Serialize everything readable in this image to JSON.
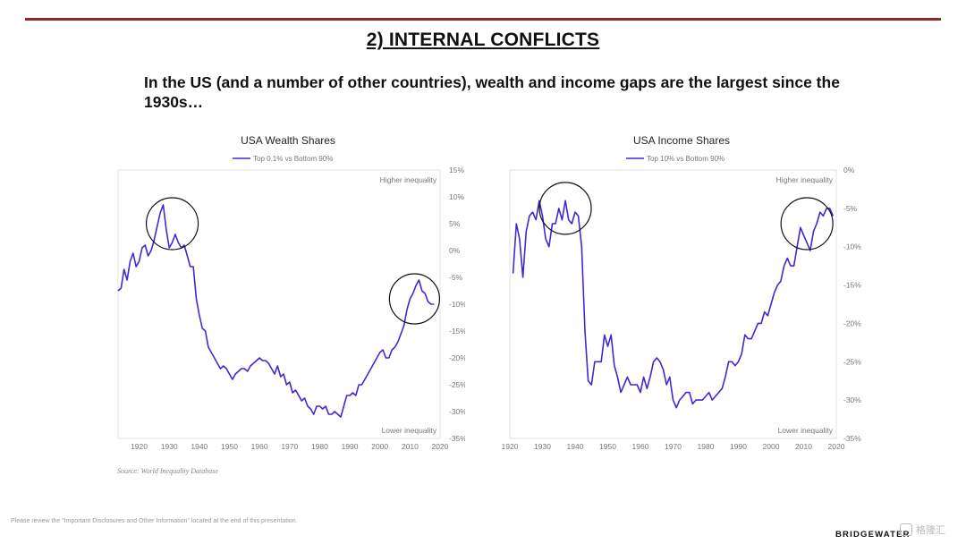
{
  "header": {
    "section_title": "2) INTERNAL CONFLICTS",
    "headline": "In the US (and a number of other countries), wealth and income gaps are the largest since the 1930s…"
  },
  "footer": {
    "source": "Source: World Inequality Database",
    "disclaimer": "Please review the \"Important Disclosures and Other Information\" located at the end of this presentation.",
    "logo": "BRIDGEWATER",
    "watermark": "格隆汇"
  },
  "chart_data": [
    {
      "type": "line",
      "title": "USA Wealth Shares",
      "series": [
        {
          "name": "Top 0.1% vs Bottom 90%",
          "color": "#3d2ad6",
          "x": [
            1913,
            1914,
            1915,
            1916,
            1917,
            1918,
            1919,
            1920,
            1921,
            1922,
            1923,
            1924,
            1925,
            1926,
            1927,
            1928,
            1929,
            1930,
            1931,
            1932,
            1933,
            1934,
            1935,
            1936,
            1937,
            1938,
            1939,
            1940,
            1941,
            1942,
            1943,
            1944,
            1945,
            1946,
            1947,
            1948,
            1949,
            1950,
            1951,
            1952,
            1953,
            1954,
            1955,
            1956,
            1957,
            1958,
            1959,
            1960,
            1961,
            1962,
            1963,
            1964,
            1965,
            1966,
            1967,
            1968,
            1969,
            1970,
            1971,
            1972,
            1973,
            1974,
            1975,
            1976,
            1977,
            1978,
            1979,
            1980,
            1981,
            1982,
            1983,
            1984,
            1985,
            1986,
            1987,
            1988,
            1989,
            1990,
            1991,
            1992,
            1993,
            1994,
            1995,
            1996,
            1997,
            1998,
            1999,
            2000,
            2001,
            2002,
            2003,
            2004,
            2005,
            2006,
            2007,
            2008,
            2009,
            2010,
            2011,
            2012,
            2013,
            2014,
            2015,
            2016,
            2017,
            2018
          ],
          "values": [
            -7.5,
            -7,
            -3.5,
            -5.5,
            -2,
            -0.5,
            -3,
            -2,
            0.5,
            1,
            -1,
            0,
            2,
            4.5,
            7,
            8.5,
            4,
            0.5,
            1.5,
            3,
            1.5,
            0.5,
            1,
            -1,
            -3,
            -3,
            -9,
            -12,
            -14.5,
            -15,
            -18,
            -19,
            -20,
            -21,
            -22,
            -21.5,
            -22,
            -23,
            -24,
            -23,
            -22.5,
            -22,
            -22,
            -22.5,
            -21.5,
            -21,
            -20.5,
            -20,
            -20.5,
            -20.5,
            -21,
            -22,
            -23,
            -21.5,
            -23.5,
            -23,
            -25,
            -24.5,
            -26.5,
            -26,
            -27,
            -28,
            -27.5,
            -29,
            -29.5,
            -30.5,
            -29,
            -29,
            -29.5,
            -29,
            -30.5,
            -30.5,
            -30,
            -30.5,
            -31,
            -29,
            -27,
            -27,
            -26.5,
            -27,
            -25,
            -25,
            -24,
            -23,
            -22,
            -21,
            -20,
            -19,
            -18.5,
            -20,
            -20,
            -18.5,
            -18,
            -17,
            -15.5,
            -14,
            -11,
            -9,
            -8,
            -6.5,
            -5.5,
            -7.5,
            -8,
            -9.5,
            -10,
            -10
          ],
          "x_domain": [
            1913,
            2020
          ]
        }
      ],
      "x_ticks": [
        "1920",
        "1930",
        "1940",
        "1950",
        "1960",
        "1970",
        "1980",
        "1990",
        "2000",
        "2010",
        "2020"
      ],
      "y_ticks": [
        "15%",
        "10%",
        "5%",
        "0%",
        "-5%",
        "-10%",
        "-15%",
        "-20%",
        "-25%",
        "-30%",
        "-35%"
      ],
      "ylim": [
        -35,
        15
      ],
      "annotations": {
        "top": "Higher inequality",
        "bottom": "Lower inequality"
      },
      "circles": [
        {
          "x": 1931,
          "y": 5.0
        },
        {
          "x": 2011.5,
          "y": -9.0
        }
      ],
      "grid": false,
      "legend_position": "top-center"
    },
    {
      "type": "line",
      "title": "USA Income Shares",
      "series": [
        {
          "name": "Top 10% vs Bottom 90%",
          "color": "#3d2ad6",
          "x": [
            1921,
            1922,
            1923,
            1924,
            1925,
            1926,
            1927,
            1928,
            1929,
            1930,
            1931,
            1932,
            1933,
            1934,
            1935,
            1936,
            1937,
            1938,
            1939,
            1940,
            1941,
            1942,
            1943,
            1944,
            1945,
            1946,
            1947,
            1948,
            1949,
            1950,
            1951,
            1952,
            1953,
            1954,
            1955,
            1956,
            1957,
            1958,
            1959,
            1960,
            1961,
            1962,
            1963,
            1964,
            1965,
            1966,
            1967,
            1968,
            1969,
            1970,
            1971,
            1972,
            1973,
            1974,
            1975,
            1976,
            1977,
            1978,
            1979,
            1980,
            1981,
            1982,
            1983,
            1984,
            1985,
            1986,
            1987,
            1988,
            1989,
            1990,
            1991,
            1992,
            1993,
            1994,
            1995,
            1996,
            1997,
            1998,
            1999,
            2000,
            2001,
            2002,
            2003,
            2004,
            2005,
            2006,
            2007,
            2008,
            2009,
            2010,
            2011,
            2012,
            2013,
            2014,
            2015,
            2016,
            2017,
            2018,
            2019
          ],
          "values": [
            -13.5,
            -7,
            -9,
            -14,
            -8,
            -6,
            -5.5,
            -6.5,
            -4,
            -6,
            -9,
            -10,
            -7,
            -7,
            -5,
            -6.5,
            -4,
            -6.5,
            -7,
            -5.5,
            -6,
            -10,
            -21,
            -27.5,
            -28,
            -25,
            -25,
            -25,
            -21.5,
            -23,
            -21.5,
            -25.5,
            -27,
            -29,
            -28,
            -27,
            -28,
            -28,
            -28,
            -29,
            -27,
            -28.5,
            -27,
            -25,
            -24.5,
            -25,
            -26,
            -28,
            -27,
            -30,
            -31,
            -30,
            -29.5,
            -29,
            -29,
            -30.5,
            -30,
            -30,
            -30,
            -29.5,
            -29,
            -30,
            -29.5,
            -29,
            -28.5,
            -27,
            -25,
            -25,
            -25.5,
            -25,
            -24,
            -21.5,
            -22,
            -22,
            -21,
            -20,
            -20,
            -18.5,
            -19,
            -17.5,
            -16,
            -15,
            -14.5,
            -12.5,
            -11.5,
            -12.5,
            -12.5,
            -10,
            -7.5,
            -8.5,
            -9.5,
            -10.5,
            -8,
            -7,
            -5.5,
            -6,
            -5,
            -5,
            -6
          ],
          "x_domain": [
            1920,
            2020
          ]
        }
      ],
      "x_ticks": [
        "1920",
        "1930",
        "1940",
        "1950",
        "1960",
        "1970",
        "1980",
        "1990",
        "2000",
        "2010",
        "2020"
      ],
      "y_ticks": [
        "0%",
        "-5%",
        "-10%",
        "-15%",
        "-20%",
        "-25%",
        "-30%",
        "-35%"
      ],
      "ylim": [
        -35,
        0
      ],
      "annotations": {
        "top": "Higher inequality",
        "bottom": "Lower inequality"
      },
      "circles": [
        {
          "x": 1937,
          "y": -5.0
        },
        {
          "x": 2011,
          "y": -7.0
        }
      ],
      "grid": false,
      "legend_position": "top-center"
    }
  ]
}
